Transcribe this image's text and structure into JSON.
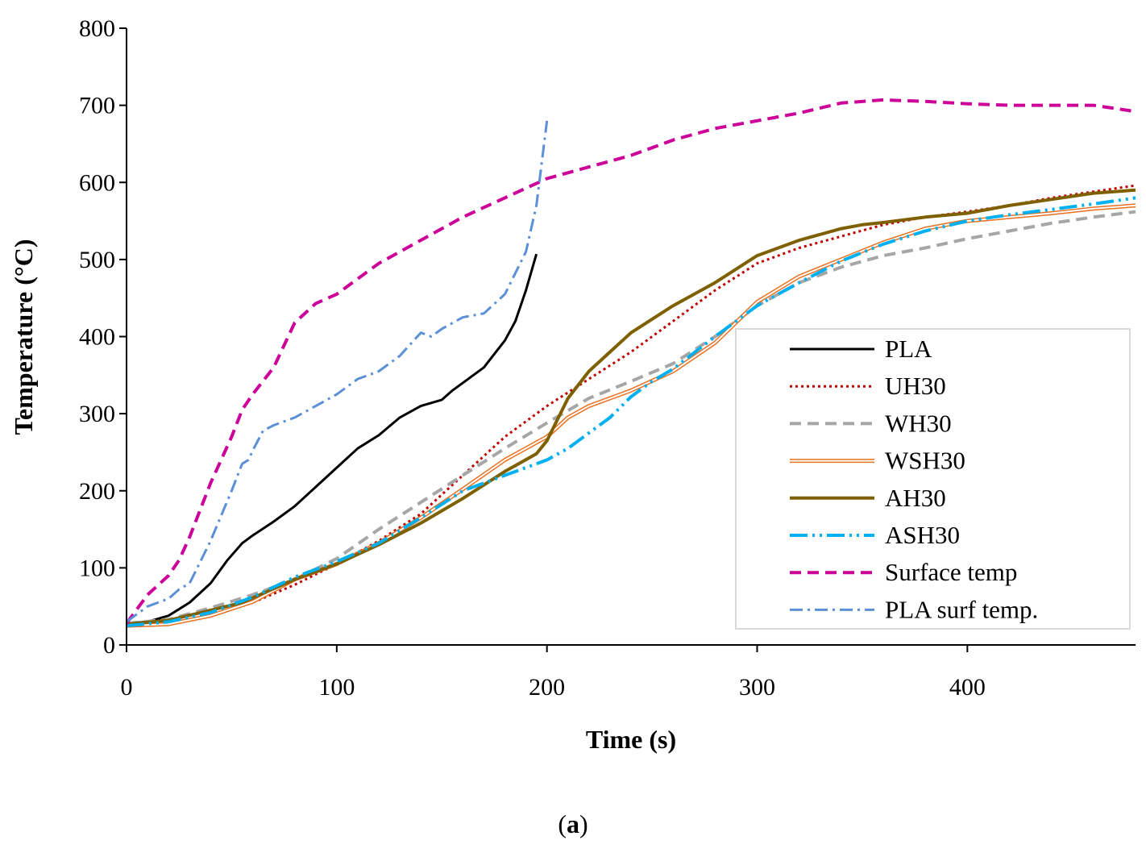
{
  "chart_data": {
    "type": "line",
    "title": "",
    "xlabel": "Time (s)",
    "ylabel": "Temperature (°C)",
    "xlim": [
      0,
      480
    ],
    "ylim": [
      0,
      800
    ],
    "xticks": [
      0,
      100,
      200,
      300,
      400
    ],
    "yticks": [
      0,
      100,
      200,
      300,
      400,
      500,
      600,
      700,
      800
    ],
    "legend_position": "lower-right",
    "series": [
      {
        "name": "PLA",
        "color": "#000000",
        "style": "solid",
        "width": 3,
        "x": [
          0,
          10,
          20,
          30,
          40,
          48,
          55,
          60,
          70,
          80,
          90,
          100,
          110,
          120,
          130,
          140,
          150,
          155,
          160,
          170,
          180,
          185,
          190,
          195
        ],
        "y": [
          28,
          30,
          38,
          55,
          80,
          110,
          132,
          142,
          160,
          180,
          205,
          230,
          255,
          272,
          295,
          310,
          318,
          330,
          340,
          360,
          395,
          420,
          460,
          507
        ]
      },
      {
        "name": "UH30",
        "color": "#c00000",
        "style": "dotted",
        "width": 3,
        "x": [
          0,
          20,
          40,
          60,
          80,
          100,
          120,
          140,
          160,
          180,
          200,
          220,
          240,
          260,
          280,
          300,
          320,
          340,
          360,
          380,
          400,
          420,
          440,
          460,
          480
        ],
        "y": [
          25,
          27,
          37,
          55,
          78,
          105,
          135,
          170,
          220,
          270,
          310,
          345,
          380,
          420,
          460,
          495,
          515,
          530,
          545,
          555,
          562,
          570,
          580,
          588,
          596
        ]
      },
      {
        "name": "WH30",
        "color": "#a6a6a6",
        "style": "dashed",
        "width": 4,
        "x": [
          0,
          20,
          40,
          60,
          80,
          100,
          120,
          140,
          160,
          180,
          200,
          220,
          240,
          260,
          280,
          300,
          320,
          340,
          360,
          380,
          400,
          420,
          440,
          460,
          480
        ],
        "y": [
          28,
          33,
          48,
          65,
          85,
          112,
          150,
          185,
          220,
          255,
          288,
          320,
          342,
          365,
          400,
          440,
          470,
          490,
          505,
          515,
          527,
          537,
          547,
          555,
          562
        ]
      },
      {
        "name": "WSH30",
        "color": "#e87020",
        "style": "double",
        "width": 2,
        "x": [
          0,
          20,
          40,
          60,
          80,
          100,
          120,
          140,
          160,
          180,
          200,
          210,
          220,
          240,
          260,
          280,
          300,
          320,
          340,
          360,
          380,
          400,
          420,
          440,
          460,
          480
        ],
        "y": [
          25,
          27,
          38,
          56,
          85,
          105,
          132,
          165,
          202,
          240,
          270,
          295,
          310,
          330,
          355,
          392,
          445,
          478,
          500,
          522,
          540,
          550,
          555,
          560,
          566,
          570
        ]
      },
      {
        "name": "AH30",
        "color": "#7f6000",
        "style": "solid",
        "width": 4,
        "x": [
          0,
          20,
          40,
          55,
          80,
          100,
          120,
          140,
          160,
          180,
          195,
          200,
          210,
          220,
          240,
          260,
          280,
          300,
          320,
          340,
          350,
          360,
          380,
          400,
          420,
          440,
          460,
          480
        ],
        "y": [
          27,
          32,
          45,
          55,
          85,
          105,
          130,
          158,
          190,
          225,
          248,
          265,
          320,
          355,
          405,
          440,
          470,
          505,
          525,
          540,
          545,
          548,
          555,
          560,
          570,
          578,
          586,
          590
        ]
      },
      {
        "name": "ASH30",
        "color": "#00b0f0",
        "style": "dashdotdot",
        "width": 4,
        "x": [
          0,
          20,
          40,
          60,
          80,
          100,
          120,
          140,
          160,
          180,
          200,
          210,
          220,
          230,
          240,
          250,
          260,
          280,
          300,
          320,
          340,
          360,
          380,
          400,
          420,
          440,
          460,
          480
        ],
        "y": [
          25,
          30,
          42,
          62,
          88,
          108,
          132,
          165,
          200,
          220,
          240,
          255,
          275,
          295,
          322,
          342,
          358,
          400,
          440,
          470,
          498,
          520,
          537,
          550,
          558,
          565,
          572,
          580
        ]
      },
      {
        "name": "Surface temp",
        "color": "#cc0099",
        "style": "dashed",
        "width": 4,
        "x": [
          0,
          10,
          20,
          25,
          30,
          40,
          50,
          55,
          60,
          70,
          80,
          90,
          100,
          120,
          140,
          160,
          180,
          200,
          220,
          240,
          260,
          280,
          300,
          320,
          340,
          360,
          380,
          400,
          420,
          440,
          460,
          480
        ],
        "y": [
          28,
          65,
          90,
          110,
          140,
          210,
          270,
          305,
          325,
          360,
          418,
          443,
          455,
          495,
          525,
          555,
          580,
          605,
          620,
          635,
          655,
          670,
          680,
          690,
          703,
          707,
          705,
          702,
          700,
          700,
          700,
          692
        ]
      },
      {
        "name": "PLA surf temp.",
        "color": "#5b8fd6",
        "style": "dashdot",
        "width": 3,
        "x": [
          0,
          10,
          20,
          25,
          30,
          40,
          50,
          55,
          58,
          60,
          65,
          70,
          80,
          90,
          100,
          110,
          120,
          130,
          140,
          145,
          150,
          160,
          170,
          180,
          190,
          195,
          200
        ],
        "y": [
          30,
          50,
          60,
          72,
          80,
          135,
          200,
          235,
          240,
          252,
          278,
          285,
          295,
          310,
          325,
          345,
          355,
          375,
          405,
          400,
          410,
          425,
          430,
          455,
          510,
          570,
          680
        ]
      }
    ],
    "caption": {
      "open": "(",
      "label": "a",
      "close": ")"
    }
  }
}
